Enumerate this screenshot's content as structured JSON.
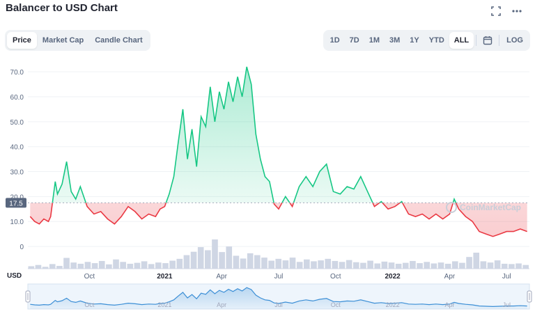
{
  "title": "Balancer to USD Chart",
  "toolbar": {
    "fullscreen_icon": "fullscreen-icon",
    "more_icon": "more-dots-icon"
  },
  "view_tabs": [
    {
      "label": "Price",
      "active": true
    },
    {
      "label": "Market Cap",
      "active": false
    },
    {
      "label": "Candle Chart",
      "active": false
    }
  ],
  "range_tabs": [
    {
      "label": "1D",
      "active": false
    },
    {
      "label": "7D",
      "active": false
    },
    {
      "label": "1M",
      "active": false
    },
    {
      "label": "3M",
      "active": false
    },
    {
      "label": "1Y",
      "active": false
    },
    {
      "label": "YTD",
      "active": false
    },
    {
      "label": "ALL",
      "active": true
    }
  ],
  "calendar_icon": "calendar-icon",
  "log_label": "LOG",
  "currency_label": "USD",
  "watermark": "CoinMarketCap",
  "colors": {
    "up": "#16c784",
    "down": "#ea3943",
    "navigator_line": "#3c8fd6",
    "volume": "#cfd6e4"
  },
  "chart_data": {
    "type": "line",
    "ylabel": "",
    "yticks": [
      "0",
      "10.0",
      "20.0",
      "30.0",
      "40.0",
      "50.0",
      "60.0",
      "70.0"
    ],
    "ylim": [
      -5,
      72
    ],
    "baseline_value": 17.5,
    "baseline_label": "17.5",
    "x_tick_labels": [
      "Oct",
      "2021",
      "Apr",
      "Jul",
      "Oct",
      "2022",
      "Apr",
      "Jul"
    ],
    "x_tick_positions": [
      2020.67,
      2021.0,
      2021.25,
      2021.5,
      2021.75,
      2022.0,
      2022.25,
      2022.5
    ],
    "x_range": [
      2020.4,
      2022.6
    ],
    "series": [
      {
        "x": [
          2020.41,
          2020.43,
          2020.45,
          2020.47,
          2020.49,
          2020.5,
          2020.52,
          2020.53,
          2020.55,
          2020.57,
          2020.59,
          2020.61,
          2020.63,
          2020.66,
          2020.69,
          2020.72,
          2020.75,
          2020.78,
          2020.81,
          2020.84,
          2020.87,
          2020.9,
          2020.93,
          2020.96,
          2020.98,
          2021.0,
          2021.02,
          2021.04,
          2021.06,
          2021.08,
          2021.1,
          2021.12,
          2021.14,
          2021.16,
          2021.18,
          2021.2,
          2021.22,
          2021.24,
          2021.26,
          2021.28,
          2021.3,
          2021.32,
          2021.34,
          2021.36,
          2021.38,
          2021.4,
          2021.42,
          2021.44,
          2021.46,
          2021.48,
          2021.5,
          2021.53,
          2021.56,
          2021.59,
          2021.62,
          2021.65,
          2021.68,
          2021.71,
          2021.74,
          2021.77,
          2021.8,
          2021.83,
          2021.86,
          2021.89,
          2021.92,
          2021.95,
          2021.98,
          2022.01,
          2022.04,
          2022.07,
          2022.1,
          2022.13,
          2022.16,
          2022.19,
          2022.22,
          2022.25,
          2022.27,
          2022.29,
          2022.32,
          2022.35,
          2022.38,
          2022.41,
          2022.44,
          2022.47,
          2022.5,
          2022.53,
          2022.56,
          2022.59
        ],
        "values": [
          12,
          10,
          9,
          11,
          10,
          12,
          26,
          21,
          25,
          34,
          22,
          19,
          24,
          16,
          13,
          14,
          11,
          9,
          12,
          16,
          14,
          11,
          13,
          12,
          15,
          16,
          21,
          28,
          42,
          55,
          35,
          47,
          32,
          52,
          48,
          64,
          50,
          62,
          55,
          66,
          58,
          68,
          60,
          72,
          65,
          45,
          35,
          28,
          26,
          17,
          15,
          20,
          16,
          24,
          28,
          24,
          30,
          33,
          22,
          21,
          24,
          23,
          28,
          22,
          16,
          18,
          15,
          16,
          18,
          13,
          12,
          13,
          11,
          13,
          11,
          13,
          19,
          15,
          12,
          10,
          6,
          5,
          4,
          5,
          6,
          6,
          7,
          6
        ]
      }
    ],
    "volume": [
      0.8,
      1.2,
      0.6,
      1.5,
      0.9,
      3.5,
      2.0,
      1.6,
      2.2,
      1.8,
      2.5,
      1.4,
      3.0,
      2.2,
      1.6,
      1.9,
      2.4,
      1.5,
      2.0,
      1.8,
      2.6,
      3.2,
      4.4,
      5.5,
      7.0,
      6.0,
      9.5,
      5.4,
      7.2,
      4.2,
      3.3,
      5.0,
      4.4,
      3.6,
      2.6,
      3.2,
      2.7,
      3.6,
      2.2,
      3.0,
      2.4,
      2.7,
      3.2,
      2.5,
      2.2,
      2.8,
      2.1,
      1.9,
      2.6,
      1.7,
      2.3,
      2.0,
      1.6,
      1.9,
      2.5,
      1.8,
      2.2,
      1.7,
      2.0,
      1.6,
      2.4,
      1.9,
      3.8,
      5.2,
      2.4,
      2.0,
      2.7,
      1.6,
      1.5,
      1.7,
      1.2
    ],
    "grid": "horizontal",
    "legend": "none"
  }
}
